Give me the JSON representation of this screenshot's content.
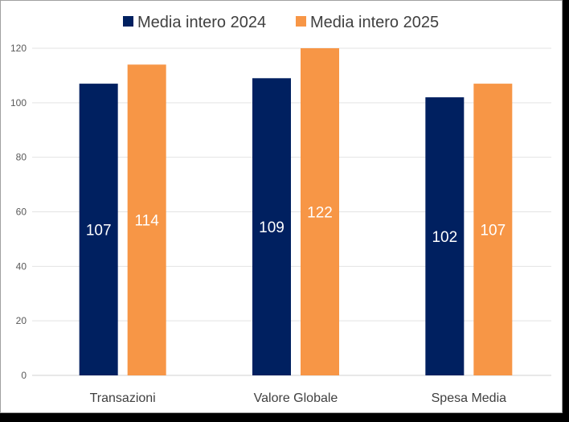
{
  "chart_data": {
    "type": "bar",
    "title": "",
    "xlabel": "",
    "ylabel": "",
    "categories": [
      "Transazioni",
      "Valore Globale",
      "Spesa Media"
    ],
    "series": [
      {
        "name": "Media intero 2024",
        "color": "#002060",
        "values": [
          107,
          109,
          102
        ]
      },
      {
        "name": "Media intero 2025",
        "color": "#F79646",
        "values": [
          114,
          122,
          107
        ]
      }
    ],
    "ylim": [
      0,
      120
    ],
    "yticks": [
      0,
      20,
      40,
      60,
      80,
      100,
      120
    ],
    "grid": true,
    "legend": "top-center",
    "data_labels": true
  }
}
